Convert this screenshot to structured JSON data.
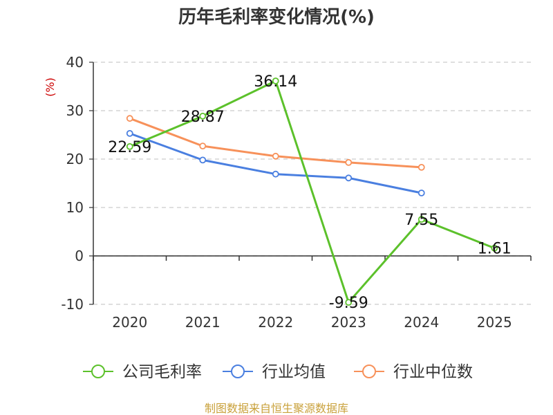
{
  "chart_data": {
    "type": "line",
    "title": "历年毛利率变化情况(%)",
    "ylabel": "(%)",
    "xlabel": "",
    "categories": [
      "2020",
      "2021",
      "2022",
      "2023",
      "2024",
      "2025"
    ],
    "yticks": [
      "40",
      "30",
      "20",
      "10",
      "0",
      "-10"
    ],
    "ylim": [
      -10,
      40
    ],
    "grid": true,
    "legend_position": "bottom",
    "series": [
      {
        "name": "公司毛利率",
        "color": "#5cc12b",
        "values": [
          22.59,
          28.87,
          36.14,
          -9.59,
          7.55,
          1.61
        ],
        "labels": [
          "22.59",
          "28.87",
          "36.14",
          "-9.59",
          "7.55",
          "1.61"
        ]
      },
      {
        "name": "行业均值",
        "color": "#4a7fe0",
        "values": [
          25.3,
          19.8,
          16.9,
          16.1,
          13.0,
          null
        ]
      },
      {
        "name": "行业中位数",
        "color": "#f7915a",
        "values": [
          28.4,
          22.7,
          20.6,
          19.3,
          18.3,
          null
        ]
      }
    ]
  },
  "colors": {
    "ylabel": "#cc0000",
    "source": "#c9a13b",
    "axis": "#333333",
    "grid": "#cccccc"
  },
  "source": "制图数据来自恒生聚源数据库"
}
